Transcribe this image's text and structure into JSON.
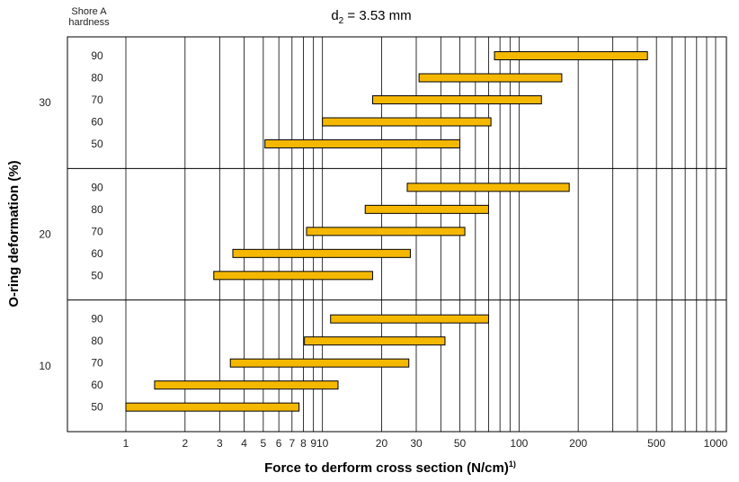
{
  "chart_data": {
    "type": "bar",
    "subtype": "floating-range-log",
    "title": "d",
    "title_sub": "2",
    "title_suffix": " = 3.53 mm",
    "corner_label_line1": "Shore A",
    "corner_label_line2": "hardness",
    "xlabel": "Force to derform cross section (N/cm)",
    "xlabel_sup": "1)",
    "ylabel": "O-ring deformation (%)",
    "x_scale": "log",
    "xlim": [
      1,
      1000
    ],
    "x_gridlines": [
      1,
      2,
      3,
      4,
      5,
      6,
      7,
      8,
      9,
      10,
      20,
      30,
      40,
      50,
      60,
      70,
      80,
      90,
      100,
      200,
      300,
      400,
      500,
      600,
      700,
      800,
      900,
      1000
    ],
    "x_ticks": [
      {
        "v": 1,
        "label": "1"
      },
      {
        "v": 2,
        "label": "2"
      },
      {
        "v": 3,
        "label": "3"
      },
      {
        "v": 4,
        "label": "4"
      },
      {
        "v": 5,
        "label": "5"
      },
      {
        "v": 6,
        "label": "6"
      },
      {
        "v": 7,
        "label": "7"
      },
      {
        "v": 8,
        "label": "8"
      },
      {
        "v": 9,
        "label": "9"
      },
      {
        "v": 10,
        "label": "10"
      },
      {
        "v": 20,
        "label": "20"
      },
      {
        "v": 30,
        "label": "30"
      },
      {
        "v": 50,
        "label": "50"
      },
      {
        "v": 100,
        "label": "100"
      },
      {
        "v": 200,
        "label": "200"
      },
      {
        "v": 500,
        "label": "500"
      },
      {
        "v": 1000,
        "label": "1000"
      }
    ],
    "bar_color": "#F5B800",
    "bar_edge_color": "#000000",
    "groups": [
      {
        "deformation": "30",
        "bars": [
          {
            "hardness": "90",
            "min": 75,
            "max": 450
          },
          {
            "hardness": "80",
            "min": 31,
            "max": 165
          },
          {
            "hardness": "70",
            "min": 18,
            "max": 130
          },
          {
            "hardness": "60",
            "min": 10,
            "max": 72
          },
          {
            "hardness": "50",
            "min": 5.1,
            "max": 50
          }
        ]
      },
      {
        "deformation": "20",
        "bars": [
          {
            "hardness": "90",
            "min": 27,
            "max": 180
          },
          {
            "hardness": "80",
            "min": 16.5,
            "max": 70
          },
          {
            "hardness": "70",
            "min": 8.3,
            "max": 53
          },
          {
            "hardness": "60",
            "min": 3.5,
            "max": 28
          },
          {
            "hardness": "50",
            "min": 2.8,
            "max": 18
          }
        ]
      },
      {
        "deformation": "10",
        "bars": [
          {
            "hardness": "90",
            "min": 11,
            "max": 70
          },
          {
            "hardness": "80",
            "min": 8.1,
            "max": 42
          },
          {
            "hardness": "70",
            "min": 3.4,
            "max": 27.5
          },
          {
            "hardness": "60",
            "min": 1.4,
            "max": 12
          },
          {
            "hardness": "50",
            "min": 1.0,
            "max": 7.6
          }
        ]
      }
    ]
  }
}
